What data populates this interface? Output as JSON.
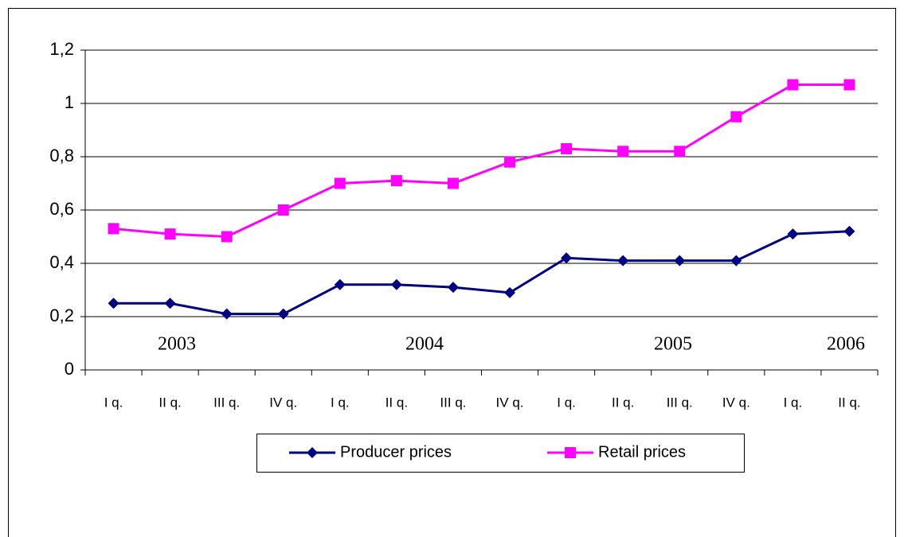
{
  "chart_data": {
    "type": "line",
    "categories": [
      "I q.",
      "II q.",
      "III q.",
      "IV q.",
      "I q.",
      "II q.",
      "III q.",
      "IV q.",
      "I q.",
      "II q.",
      "III q.",
      "IV q.",
      "I q.",
      "II q."
    ],
    "annotations": [
      "2003",
      "2004",
      "2005",
      "2006"
    ],
    "series": [
      {
        "name": "Producer prices",
        "color": "#000080",
        "marker": "diamond",
        "values": [
          0.25,
          0.25,
          0.21,
          0.21,
          0.32,
          0.32,
          0.31,
          0.29,
          0.42,
          0.41,
          0.41,
          0.41,
          0.51,
          0.52
        ]
      },
      {
        "name": "Retail prices",
        "color": "#ff00ff",
        "marker": "square",
        "values": [
          0.53,
          0.51,
          0.5,
          0.6,
          0.7,
          0.71,
          0.7,
          0.78,
          0.83,
          0.82,
          0.82,
          0.95,
          1.07,
          1.07
        ]
      }
    ],
    "ylim": [
      0,
      1.2
    ],
    "yticks": [
      0,
      {
        "value": 0.2,
        "label": "0,2"
      },
      {
        "value": 0.4,
        "label": "0,4"
      },
      {
        "value": 0.6,
        "label": "0,6"
      },
      {
        "value": 0.8,
        "label": "0,8"
      },
      1,
      {
        "value": 1.2,
        "label": "1,2"
      }
    ],
    "grid": true,
    "legend": "bottom"
  }
}
